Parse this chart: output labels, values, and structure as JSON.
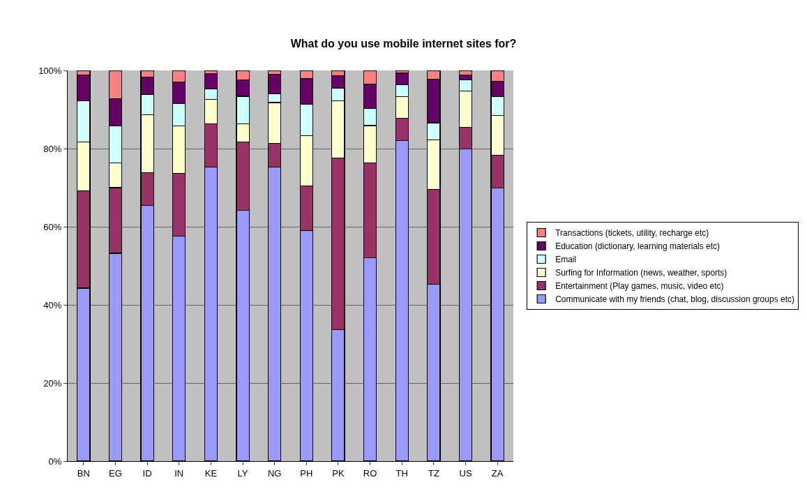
{
  "chart_data": {
    "type": "bar",
    "title": "What do you use mobile internet sites for?",
    "stacked": true,
    "categories": [
      "BN",
      "EG",
      "ID",
      "IN",
      "KE",
      "LY",
      "NG",
      "PH",
      "PK",
      "RO",
      "TH",
      "TZ",
      "US",
      "ZA"
    ],
    "series": [
      {
        "name": "Communicate with my friends (chat, blog, discussion groups etc)",
        "color": "#9999ff",
        "values": [
          44.3,
          53.2,
          65.4,
          57.6,
          75.3,
          64.2,
          75.3,
          59.0,
          33.6,
          52.0,
          82.0,
          45.2,
          79.9,
          69.9
        ]
      },
      {
        "name": "Entertainment (Play games, music, video etc)",
        "color": "#993366",
        "values": [
          24.9,
          16.8,
          8.5,
          16.1,
          11.0,
          17.5,
          6.0,
          11.4,
          44.0,
          24.3,
          5.8,
          24.3,
          5.6,
          8.4
        ]
      },
      {
        "name": "Surfing for Information (news, weather, sports)",
        "color": "#ffffcc",
        "values": [
          12.5,
          6.4,
          14.8,
          12.1,
          6.3,
          4.7,
          10.5,
          12.9,
          14.6,
          9.6,
          5.5,
          12.8,
          9.3,
          10.2
        ]
      },
      {
        "name": "Email",
        "color": "#ccffff",
        "values": [
          10.6,
          9.4,
          5.1,
          5.7,
          2.6,
          7.0,
          2.2,
          8.1,
          3.2,
          4.4,
          3.0,
          4.3,
          2.8,
          4.8
        ]
      },
      {
        "name": "Education (dictionary, learning materials etc)",
        "color": "#660066",
        "values": [
          6.6,
          6.9,
          4.5,
          5.6,
          4.0,
          4.2,
          5.0,
          6.6,
          3.2,
          6.2,
          3.1,
          11.2,
          1.2,
          4.0
        ]
      },
      {
        "name": "Transactions (tickets, utility, recharge etc)",
        "color": "#ff8080",
        "values": [
          1.1,
          7.3,
          1.7,
          2.9,
          0.8,
          2.4,
          1.0,
          2.0,
          1.4,
          3.5,
          0.6,
          2.2,
          1.2,
          2.7
        ]
      }
    ],
    "ylim": [
      0,
      100
    ],
    "yticks": [
      {
        "value": 0,
        "label": "0%"
      },
      {
        "value": 20,
        "label": "20%"
      },
      {
        "value": 40,
        "label": "40%"
      },
      {
        "value": 60,
        "label": "60%"
      },
      {
        "value": 80,
        "label": "80%"
      },
      {
        "value": 100,
        "label": "100%"
      }
    ],
    "grid": "y",
    "legend": "right"
  }
}
